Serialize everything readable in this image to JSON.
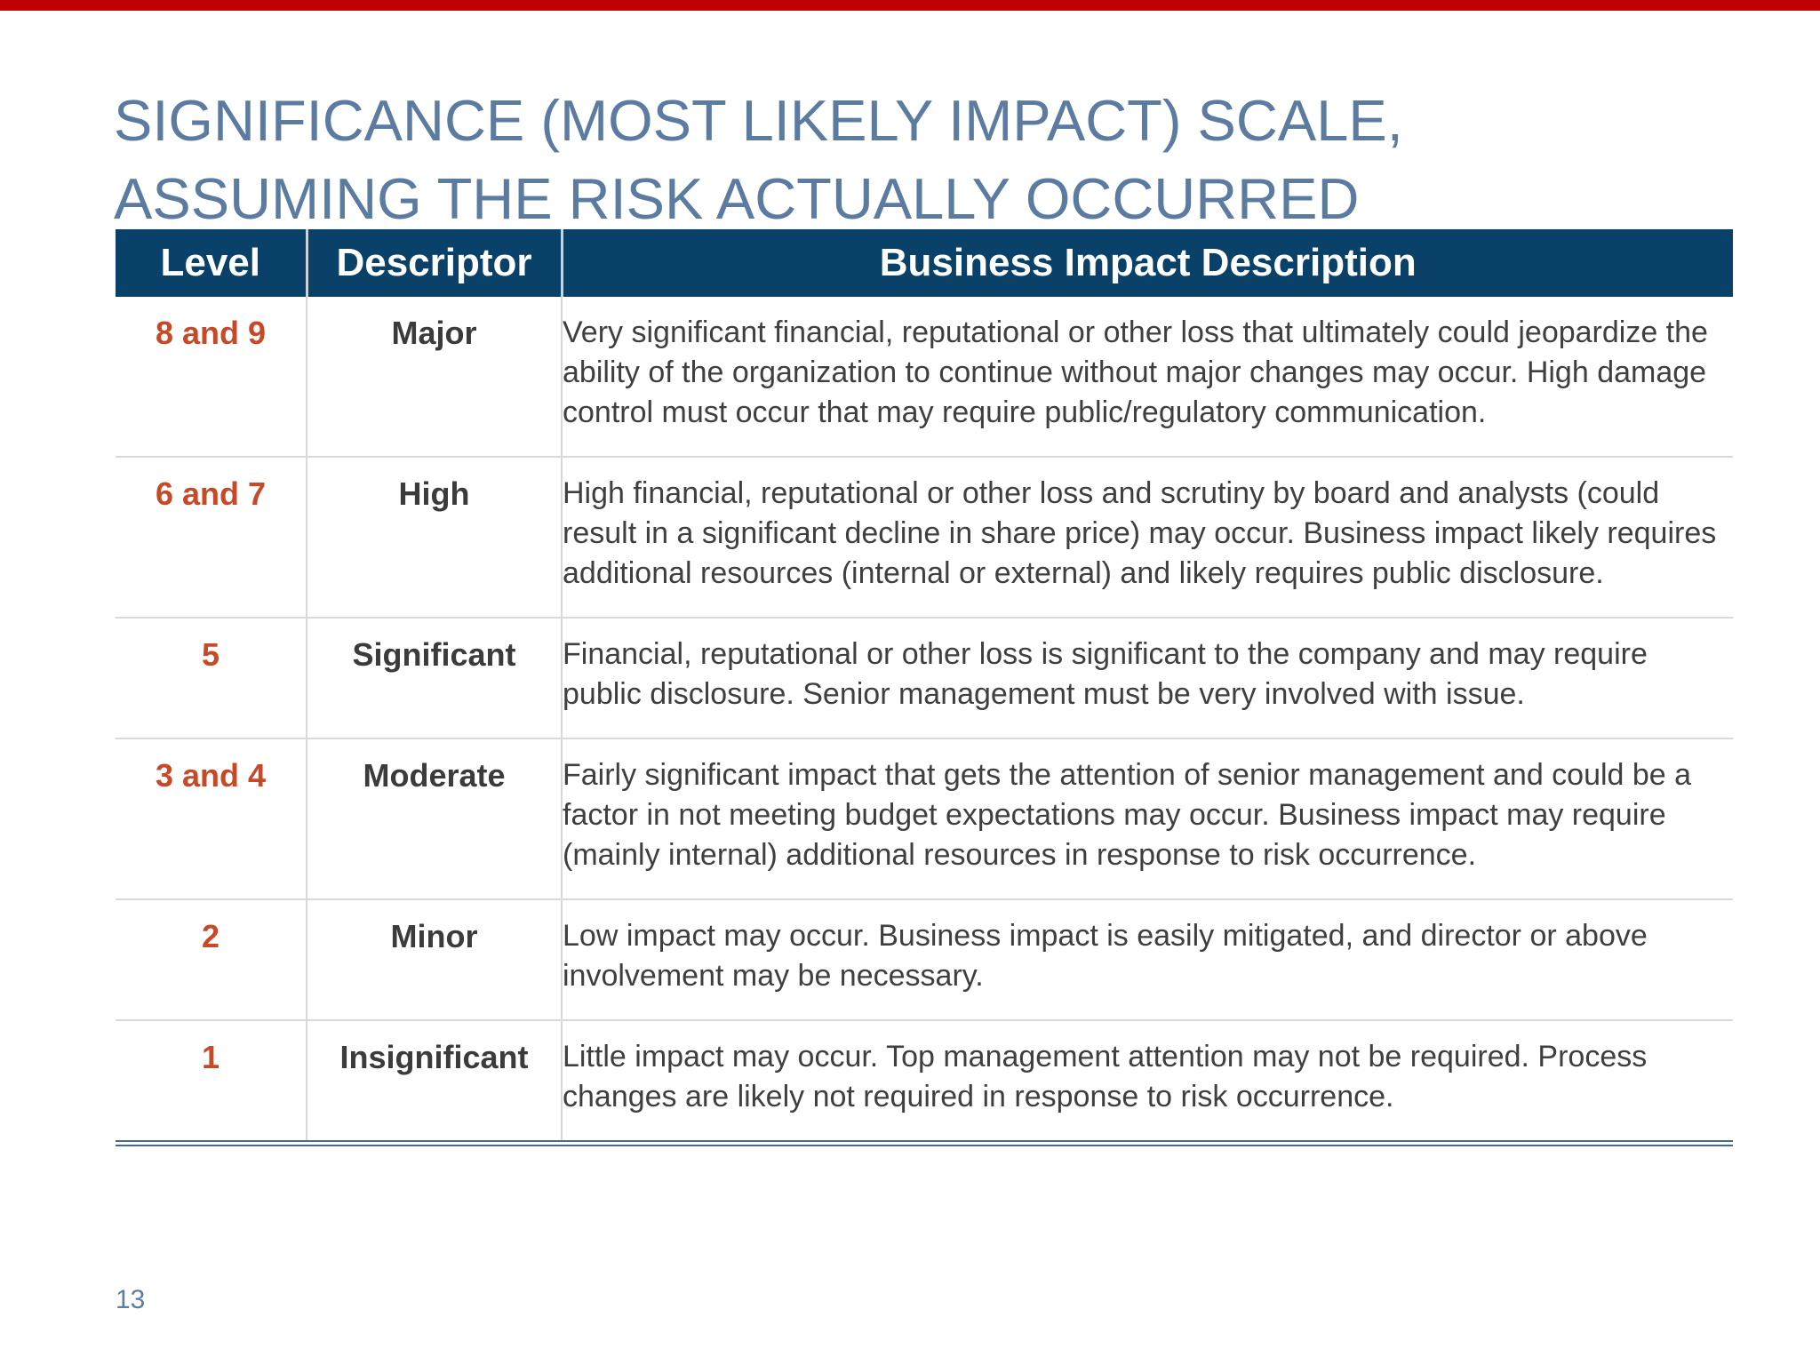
{
  "slide": {
    "title_line1": "SIGNIFICANCE (MOST LIKELY IMPACT) SCALE,",
    "title_line2": "ASSUMING THE RISK ACTUALLY OCCURRED",
    "page_number": "13"
  },
  "colors": {
    "accent_bar": "#c00000",
    "title": "#5b7ba1",
    "header_bg": "#0a4168",
    "header_text": "#ffffff",
    "level_text": "#c64a28",
    "descriptor_text": "#3b3b3b",
    "body_text": "#3f3f3f",
    "row_border": "#d9d9d9",
    "table_bottom_border": "#4a6a85",
    "page_number": "#5d7da1"
  },
  "table": {
    "headers": [
      "Level",
      "Descriptor",
      "Business Impact Description"
    ],
    "rows": [
      {
        "level": "8 and 9",
        "descriptor": "Major",
        "description": "Very significant financial, reputational or other loss that ultimately could jeopardize the ability of the organization to continue without major changes may occur. High damage control must occur that may require public/regulatory communication."
      },
      {
        "level": "6 and 7",
        "descriptor": "High",
        "description": "High financial, reputational or other loss and scrutiny by board and analysts (could result in a significant decline in share price) may occur. Business impact likely requires additional resources (internal or external) and likely requires public disclosure."
      },
      {
        "level": "5",
        "descriptor": "Significant",
        "description": "Financial, reputational or other loss is significant to the company and may require public disclosure. Senior management must be very involved with issue."
      },
      {
        "level": "3 and 4",
        "descriptor": "Moderate",
        "description": "Fairly significant impact that gets the attention of senior management and could be a factor in not meeting budget expectations may occur. Business impact may require (mainly internal) additional resources in response to risk occurrence."
      },
      {
        "level": "2",
        "descriptor": "Minor",
        "description": "Low impact may occur. Business impact is easily mitigated, and director or above involvement may be necessary."
      },
      {
        "level": "1",
        "descriptor": "Insignificant",
        "description": "Little impact may occur. Top management attention may not be required. Process changes are likely not required in response to risk occurrence."
      }
    ]
  }
}
